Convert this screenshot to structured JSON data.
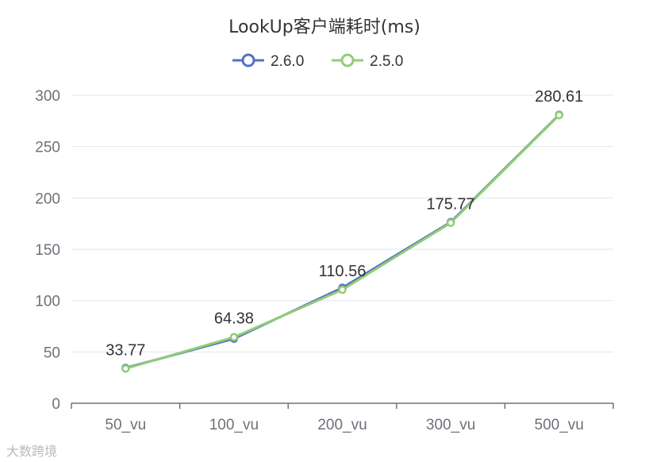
{
  "chart_data": {
    "type": "line",
    "title": "LookUp客户端耗时(ms)",
    "categories": [
      "50_vu",
      "100_vu",
      "200_vu",
      "300_vu",
      "500_vu"
    ],
    "series": [
      {
        "name": "2.6.0",
        "color": "#5470c6",
        "values": [
          34.4,
          62.9,
          112.5,
          176.5,
          281.0
        ],
        "labels": [
          "",
          "",
          "",
          "",
          ""
        ]
      },
      {
        "name": "2.5.0",
        "color": "#91cc75",
        "values": [
          33.77,
          64.38,
          110.56,
          175.77,
          280.61
        ],
        "labels": [
          "33.77",
          "64.38",
          "110.56",
          "175.77",
          "280.61"
        ]
      }
    ],
    "yticks": [
      0,
      50,
      100,
      150,
      200,
      250,
      300
    ],
    "ylim": [
      0,
      300
    ],
    "legend_position": "top-center",
    "grid": true
  },
  "watermark": "大数跨境"
}
